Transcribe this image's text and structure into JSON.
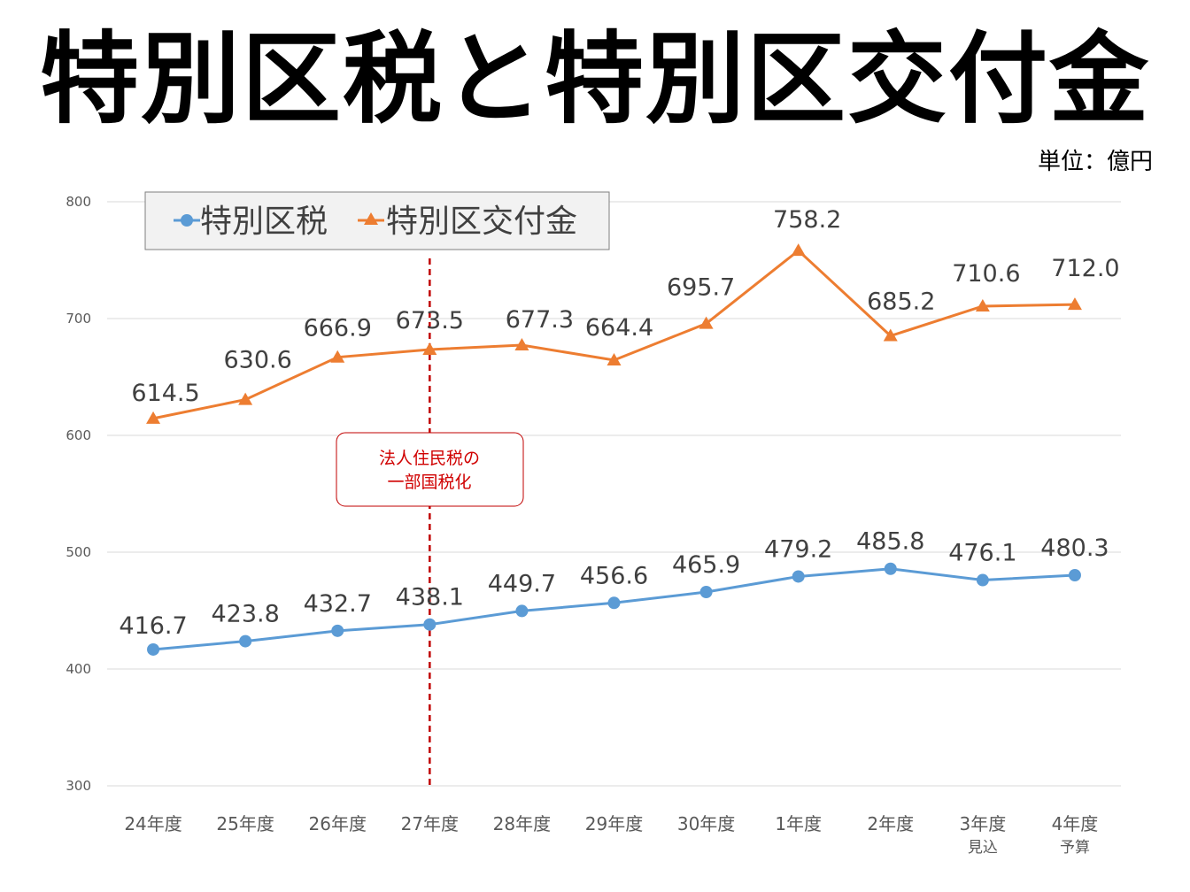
{
  "title": "特別区税と特別区交付金",
  "unit": "単位：億円",
  "annotation": [
    "法人住民税の",
    "一部国税化"
  ],
  "chart_data": {
    "type": "line",
    "categories": [
      [
        "24年度"
      ],
      [
        "25年度"
      ],
      [
        "26年度"
      ],
      [
        "27年度"
      ],
      [
        "28年度"
      ],
      [
        "29年度"
      ],
      [
        "30年度"
      ],
      [
        "1年度"
      ],
      [
        "2年度"
      ],
      [
        "3年度",
        "見込"
      ],
      [
        "4年度",
        "予算"
      ]
    ],
    "ylim": [
      300,
      800
    ],
    "yticks": [
      "300",
      "400",
      "500",
      "600",
      "700",
      "800"
    ],
    "grid": true,
    "legend_position": "top-left",
    "marker_line_category": "27年度",
    "series": [
      {
        "name": "特別区税",
        "color": "#5b9bd5",
        "marker": "circle",
        "values": [
          416.7,
          423.8,
          432.7,
          438.1,
          449.7,
          456.6,
          465.9,
          479.2,
          485.8,
          476.1,
          480.3
        ],
        "labels": [
          "416.7",
          "423.8",
          "432.7",
          "438.1",
          "449.7",
          "456.6",
          "465.9",
          "479.2",
          "485.8",
          "476.1",
          "480.3"
        ]
      },
      {
        "name": "特別区交付金",
        "color": "#ed7d31",
        "marker": "triangle",
        "values": [
          614.5,
          630.6,
          666.9,
          673.5,
          677.3,
          664.4,
          695.7,
          758.2,
          685.2,
          710.6,
          712.0
        ],
        "labels": [
          "614.5",
          "630.6",
          "666.9",
          "673.5",
          "677.3",
          "664.4",
          "695.7",
          "758.2",
          "685.2",
          "710.6",
          "712.0"
        ]
      }
    ],
    "dashed_line_color": "#c00000"
  }
}
